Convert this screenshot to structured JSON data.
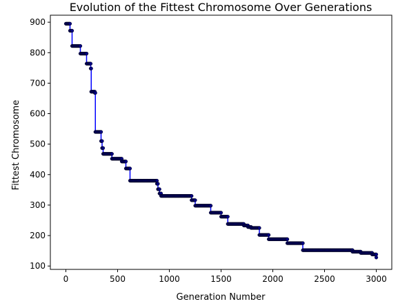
{
  "chart_data": {
    "type": "line",
    "title": "Evolution of the Fittest Chromosome Over Generations",
    "xlabel": "Generation Number",
    "ylabel": "Fittest Chromosome",
    "xlim": [
      -150,
      3150
    ],
    "ylim": [
      89,
      923
    ],
    "xticks": [
      0,
      500,
      1000,
      1500,
      2000,
      2500,
      3000
    ],
    "yticks": [
      100,
      200,
      300,
      400,
      500,
      600,
      700,
      800,
      900
    ],
    "grid": false,
    "line_color": "#0000ff",
    "marker_color": "#000080",
    "steps": [
      [
        0,
        895
      ],
      [
        40,
        872
      ],
      [
        60,
        822
      ],
      [
        140,
        797
      ],
      [
        200,
        764
      ],
      [
        240,
        748
      ],
      [
        245,
        672
      ],
      [
        280,
        668
      ],
      [
        285,
        540
      ],
      [
        340,
        510
      ],
      [
        350,
        487
      ],
      [
        360,
        468
      ],
      [
        445,
        452
      ],
      [
        540,
        443
      ],
      [
        580,
        420
      ],
      [
        620,
        380
      ],
      [
        880,
        370
      ],
      [
        890,
        352
      ],
      [
        905,
        338
      ],
      [
        920,
        330
      ],
      [
        1215,
        316
      ],
      [
        1250,
        298
      ],
      [
        1400,
        275
      ],
      [
        1500,
        262
      ],
      [
        1565,
        238
      ],
      [
        1720,
        233
      ],
      [
        1760,
        228
      ],
      [
        1790,
        225
      ],
      [
        1870,
        202
      ],
      [
        1960,
        188
      ],
      [
        2140,
        175
      ],
      [
        2290,
        152
      ],
      [
        2770,
        147
      ],
      [
        2850,
        143
      ],
      [
        2960,
        138
      ],
      [
        3000,
        128
      ]
    ]
  }
}
